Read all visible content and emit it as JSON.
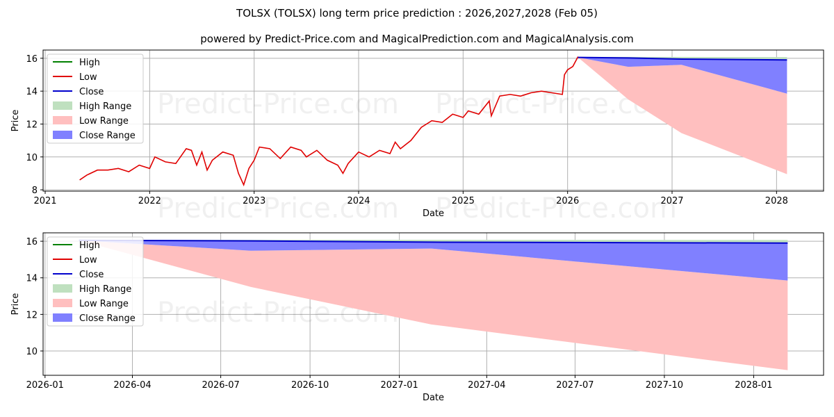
{
  "title": "TOLSX (TOLSX) long term price prediction : 2026,2027,2028 (Feb 05)",
  "subtitle": "powered by Predict-Price.com and MagicalPrediction.com and MagicalAnalysis.com",
  "watermark": "Predict-Price.com",
  "colors": {
    "high": "#008000",
    "low": "#e00000",
    "close": "#0000cc",
    "high_range": "#bfe0bf",
    "low_range": "#ffbfbf",
    "close_range": "#8080ff"
  },
  "legend": [
    "High",
    "Low",
    "Close",
    "High Range",
    "Low Range",
    "Close Range"
  ],
  "chart_data": [
    {
      "type": "line",
      "xlabel": "Date",
      "ylabel": "Price",
      "xlim": [
        2020.98,
        2028.45
      ],
      "ylim": [
        7.92,
        16.5
      ],
      "xticks": [
        {
          "v": 2021,
          "label": "2021"
        },
        {
          "v": 2022,
          "label": "2022"
        },
        {
          "v": 2023,
          "label": "2023"
        },
        {
          "v": 2024,
          "label": "2024"
        },
        {
          "v": 2025,
          "label": "2025"
        },
        {
          "v": 2026,
          "label": "2026"
        },
        {
          "v": 2027,
          "label": "2027"
        },
        {
          "v": 2028,
          "label": "2028"
        }
      ],
      "yticks": [
        8,
        10,
        12,
        14,
        16
      ],
      "grid": true,
      "legend_position": "top-left",
      "history_low": {
        "x": [
          2021.33,
          2021.4,
          2021.5,
          2021.6,
          2021.7,
          2021.8,
          2021.9,
          2022.0,
          2022.05,
          2022.15,
          2022.25,
          2022.35,
          2022.4,
          2022.45,
          2022.5,
          2022.55,
          2022.6,
          2022.7,
          2022.8,
          2022.85,
          2022.9,
          2022.95,
          2023.0,
          2023.05,
          2023.15,
          2023.25,
          2023.35,
          2023.45,
          2023.5,
          2023.6,
          2023.7,
          2023.8,
          2023.85,
          2023.9,
          2024.0,
          2024.1,
          2024.2,
          2024.3,
          2024.35,
          2024.4,
          2024.5,
          2024.6,
          2024.7,
          2024.8,
          2024.9,
          2025.0,
          2025.05,
          2025.15,
          2025.25,
          2025.27,
          2025.35,
          2025.45,
          2025.55,
          2025.65,
          2025.75,
          2025.85,
          2025.95,
          2025.97,
          2026.0,
          2026.05,
          2026.1
        ],
        "y": [
          8.6,
          8.9,
          9.2,
          9.2,
          9.3,
          9.1,
          9.5,
          9.3,
          10.0,
          9.7,
          9.6,
          10.5,
          10.4,
          9.5,
          10.3,
          9.2,
          9.8,
          10.3,
          10.1,
          9.0,
          8.3,
          9.3,
          9.8,
          10.6,
          10.5,
          9.9,
          10.6,
          10.4,
          10.0,
          10.4,
          9.8,
          9.5,
          9.0,
          9.6,
          10.3,
          10.0,
          10.4,
          10.2,
          10.9,
          10.5,
          11.0,
          11.8,
          12.2,
          12.1,
          12.6,
          12.4,
          12.8,
          12.6,
          13.4,
          12.5,
          13.7,
          13.8,
          13.7,
          13.9,
          14.0,
          13.9,
          13.8,
          15.0,
          15.3,
          15.5,
          16.1
        ]
      },
      "forecast": {
        "x": [
          2026.1,
          2026.58,
          2027.09,
          2028.1
        ],
        "high": [
          16.08,
          16.08,
          16.08,
          16.07
        ],
        "close": [
          16.05,
          16.02,
          15.95,
          15.9
        ],
        "close_range_low": [
          16.05,
          15.48,
          15.6,
          13.85
        ],
        "low_range_low": [
          16.05,
          13.5,
          11.45,
          8.95
        ]
      }
    },
    {
      "type": "line",
      "xlabel": "Date",
      "ylabel": "Price",
      "xlim_days_from_2026_01_01": [
        -2,
        802
      ],
      "ylim": [
        8.67,
        16.46
      ],
      "xticks": [
        {
          "v": 0,
          "label": "2026-01"
        },
        {
          "v": 90,
          "label": "2026-04"
        },
        {
          "v": 181,
          "label": "2026-07"
        },
        {
          "v": 273,
          "label": "2026-10"
        },
        {
          "v": 365,
          "label": "2027-01"
        },
        {
          "v": 455,
          "label": "2027-04"
        },
        {
          "v": 546,
          "label": "2027-07"
        },
        {
          "v": 638,
          "label": "2027-10"
        },
        {
          "v": 730,
          "label": "2028-01"
        }
      ],
      "yticks": [
        10,
        12,
        14,
        16
      ],
      "grid": true,
      "legend_position": "top-left",
      "forecast": {
        "x": [
          35,
          212,
          398,
          765
        ],
        "high": [
          16.08,
          16.08,
          16.08,
          16.07
        ],
        "close": [
          16.05,
          16.02,
          15.95,
          15.9
        ],
        "close_range_low": [
          16.05,
          15.48,
          15.6,
          13.85
        ],
        "low_range_low": [
          16.05,
          13.5,
          11.45,
          8.95
        ]
      }
    }
  ]
}
